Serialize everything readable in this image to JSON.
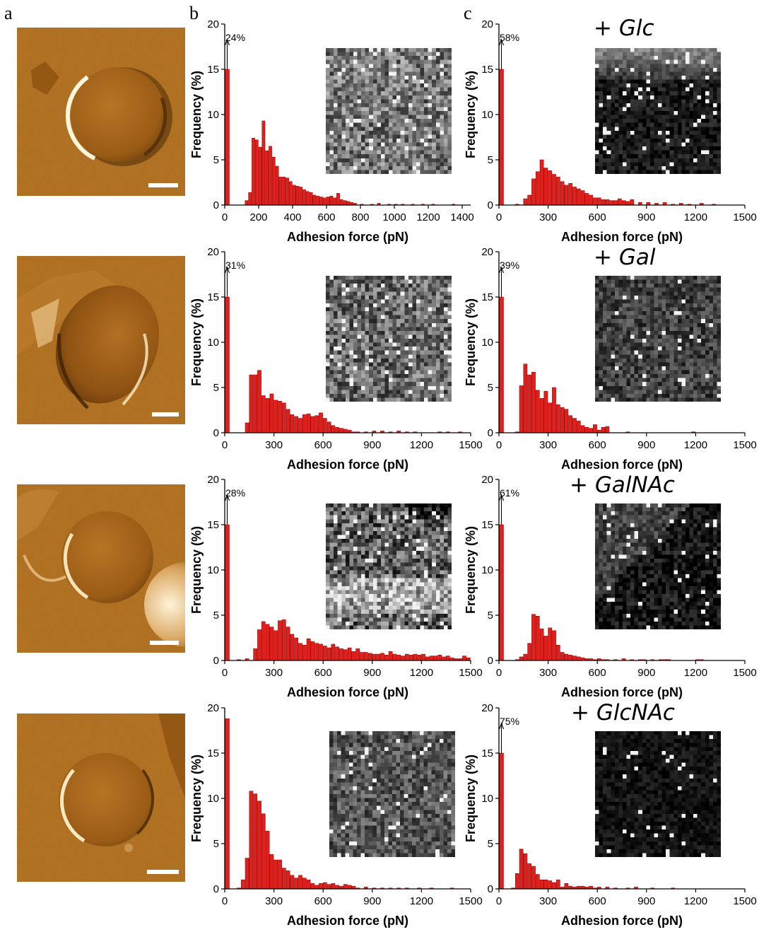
{
  "panel_labels": [
    "a",
    "b",
    "c"
  ],
  "sugars": [
    "+ Glc",
    "+ Gal",
    "+ GalNAc",
    "+ GlcNAc"
  ],
  "colors": {
    "bar_fill": "#e0201c",
    "bar_edge": "#8a0000",
    "afm_base": "#a86518"
  },
  "chart_data": [
    {
      "type": "bar",
      "panel": "b",
      "row": 1,
      "annotation": "24%",
      "xlabel": "Adhesion force (pN)",
      "ylabel": "Frequency (%)",
      "xlim": [
        0,
        1450
      ],
      "ylim": [
        0,
        20
      ],
      "xticks": [
        0,
        200,
        400,
        600,
        800,
        1000,
        1200,
        1400
      ],
      "yticks": [
        0,
        5,
        10,
        15,
        20
      ],
      "bin_width": 20,
      "x": [
        0,
        120,
        140,
        160,
        180,
        200,
        220,
        240,
        260,
        280,
        300,
        320,
        340,
        360,
        380,
        400,
        420,
        440,
        460,
        480,
        500,
        520,
        540,
        560,
        580,
        600,
        620,
        640,
        660,
        680,
        700,
        720,
        740,
        760,
        800,
        860,
        900,
        960,
        1000,
        1040,
        1100,
        1160,
        1220,
        1340
      ],
      "values": [
        15,
        0.5,
        1.4,
        7.4,
        7.2,
        6.4,
        9.3,
        6.0,
        6.5,
        5.3,
        4.3,
        3.1,
        3.1,
        3.0,
        2.6,
        2.2,
        2.1,
        2.0,
        1.7,
        1.5,
        1.4,
        1.1,
        1.0,
        0.9,
        0.8,
        0.9,
        1.0,
        0.8,
        1.3,
        0.6,
        0.5,
        0.4,
        0.3,
        0.2,
        0.1,
        0.1,
        0.2,
        0.1,
        0.1,
        0.1,
        0.1,
        0.1,
        0.1,
        0.1
      ]
    },
    {
      "type": "bar",
      "panel": "c",
      "row": 1,
      "annotation": "58%",
      "xlabel": "Adhesion force (pN)",
      "ylabel": "Frequency (%)",
      "xlim": [
        0,
        1500
      ],
      "ylim": [
        0,
        20
      ],
      "xticks": [
        0,
        300,
        600,
        900,
        1200,
        1500
      ],
      "yticks": [
        0,
        5,
        10,
        15,
        20
      ],
      "bin_width": 25,
      "x": [
        0,
        100,
        150,
        175,
        200,
        225,
        250,
        275,
        300,
        325,
        350,
        375,
        400,
        425,
        450,
        475,
        500,
        525,
        550,
        575,
        600,
        625,
        650,
        675,
        700,
        725,
        750,
        775,
        800,
        850,
        900,
        950,
        1000,
        1050,
        1100,
        1150,
        1225,
        1300
      ],
      "values": [
        15,
        0.1,
        0.7,
        1.1,
        2.9,
        3.7,
        5.0,
        4.1,
        3.8,
        3.4,
        3.1,
        2.6,
        2.2,
        2.4,
        2.0,
        1.8,
        1.6,
        1.3,
        1.1,
        0.8,
        0.8,
        0.6,
        0.6,
        0.5,
        0.5,
        0.7,
        0.5,
        0.4,
        0.6,
        0.3,
        0.3,
        0.2,
        0.3,
        0.1,
        0.2,
        0.1,
        0.2,
        0.1
      ]
    },
    {
      "type": "bar",
      "panel": "b",
      "row": 2,
      "annotation": "31%",
      "xlabel": "Adhesion force (pN)",
      "ylabel": "Frequency (%)",
      "xlim": [
        0,
        1500
      ],
      "ylim": [
        0,
        20
      ],
      "xticks": [
        0,
        300,
        600,
        900,
        1200,
        1500
      ],
      "yticks": [
        0,
        5,
        10,
        15,
        20
      ],
      "bin_width": 25,
      "x": [
        0,
        125,
        150,
        175,
        200,
        225,
        250,
        275,
        300,
        325,
        350,
        375,
        400,
        425,
        450,
        475,
        500,
        525,
        550,
        575,
        600,
        625,
        650,
        675,
        700,
        725,
        750,
        775,
        800,
        850,
        900,
        950,
        1000,
        1050,
        1100,
        1150,
        1300,
        1350,
        1425
      ],
      "values": [
        15,
        1.1,
        6.4,
        6.4,
        6.9,
        4.1,
        3.8,
        4.3,
        3.6,
        3.5,
        3.3,
        2.6,
        2.0,
        1.8,
        1.6,
        2.0,
        2.1,
        1.8,
        1.9,
        2.2,
        1.6,
        1.2,
        0.8,
        0.6,
        0.5,
        0.4,
        0.3,
        0.1,
        0.1,
        0.1,
        0.2,
        0.2,
        0.1,
        0.2,
        0.1,
        0.1,
        0.1,
        0.1,
        0.1
      ]
    },
    {
      "type": "bar",
      "panel": "c",
      "row": 2,
      "annotation": "39%",
      "xlabel": "Adhesion force (pN)",
      "ylabel": "Frequency (%)",
      "xlim": [
        0,
        1500
      ],
      "ylim": [
        0,
        20
      ],
      "xticks": [
        0,
        300,
        600,
        900,
        1200,
        1500
      ],
      "yticks": [
        0,
        5,
        10,
        15,
        20
      ],
      "bin_width": 25,
      "x": [
        0,
        100,
        125,
        150,
        175,
        200,
        225,
        250,
        275,
        300,
        325,
        350,
        375,
        400,
        425,
        450,
        475,
        500,
        525,
        550,
        575,
        600,
        625,
        650,
        775,
        1175
      ],
      "values": [
        15,
        0.1,
        5.2,
        7.6,
        6.4,
        6.7,
        4.7,
        3.8,
        4.6,
        3.3,
        5.0,
        3.1,
        2.8,
        2.6,
        1.9,
        1.6,
        1.3,
        0.8,
        0.6,
        0.5,
        0.9,
        0.3,
        0.6,
        0.7,
        0.1,
        0.1
      ]
    },
    {
      "type": "bar",
      "panel": "b",
      "row": 3,
      "annotation": "28%",
      "xlabel": "Adhesion force (pN)",
      "ylabel": "Frequency (%)",
      "xlim": [
        0,
        1500
      ],
      "ylim": [
        0,
        20
      ],
      "xticks": [
        0,
        300,
        600,
        900,
        1200,
        1500
      ],
      "yticks": [
        0,
        5,
        10,
        15,
        20
      ],
      "bin_width": 25,
      "x": [
        0,
        75,
        125,
        175,
        200,
        225,
        250,
        275,
        300,
        325,
        350,
        375,
        400,
        425,
        450,
        475,
        500,
        525,
        550,
        575,
        600,
        625,
        650,
        675,
        700,
        725,
        750,
        775,
        800,
        825,
        850,
        875,
        900,
        925,
        950,
        975,
        1000,
        1025,
        1050,
        1075,
        1100,
        1125,
        1150,
        1175,
        1200,
        1225,
        1250,
        1275,
        1300,
        1325,
        1350,
        1375,
        1400,
        1425,
        1450,
        1475
      ],
      "values": [
        15,
        0.1,
        0.2,
        1.3,
        3.4,
        4.3,
        4.0,
        3.7,
        3.3,
        4.4,
        4.5,
        3.7,
        2.9,
        2.5,
        1.9,
        1.7,
        2.4,
        2.1,
        1.9,
        1.8,
        1.6,
        1.4,
        1.8,
        1.5,
        1.3,
        1.2,
        1.4,
        1.0,
        1.3,
        0.9,
        0.9,
        0.8,
        0.7,
        0.7,
        0.8,
        0.6,
        1.0,
        0.7,
        0.6,
        0.5,
        0.7,
        0.6,
        0.7,
        0.6,
        0.7,
        0.4,
        0.5,
        0.5,
        0.6,
        0.4,
        0.5,
        0.3,
        0.2,
        0.2,
        0.5,
        0.3
      ]
    },
    {
      "type": "bar",
      "panel": "c",
      "row": 3,
      "annotation": "61%",
      "xlabel": "Adhesion force (pN)",
      "ylabel": "Frequency (%)",
      "xlim": [
        0,
        1500
      ],
      "ylim": [
        0,
        20
      ],
      "xticks": [
        0,
        300,
        600,
        900,
        1200,
        1500
      ],
      "yticks": [
        0,
        5,
        10,
        15,
        20
      ],
      "bin_width": 25,
      "x": [
        0,
        100,
        125,
        150,
        175,
        200,
        225,
        250,
        275,
        300,
        325,
        350,
        375,
        400,
        425,
        450,
        475,
        500,
        525,
        550,
        575,
        600,
        625,
        650,
        700,
        750,
        800,
        850,
        875,
        925,
        975,
        1000,
        1025,
        1200,
        1225
      ],
      "values": [
        15,
        0.1,
        0.4,
        0.7,
        1.9,
        5.1,
        4.9,
        3.5,
        2.7,
        3.6,
        3.3,
        1.7,
        0.9,
        0.7,
        0.6,
        0.5,
        0.4,
        0.3,
        0.2,
        0.2,
        0.1,
        0.2,
        0.1,
        0.1,
        0.1,
        0.2,
        0.1,
        0.1,
        0.1,
        0.1,
        0.1,
        0.1,
        0.1,
        0.1,
        0.1
      ]
    },
    {
      "type": "bar",
      "panel": "b",
      "row": 4,
      "xlabel": "Adhesion force (pN)",
      "ylabel": "Frequency (%)",
      "xlim": [
        0,
        1500
      ],
      "ylim": [
        0,
        20
      ],
      "xticks": [
        0,
        300,
        600,
        900,
        1200,
        1500
      ],
      "yticks": [
        0,
        5,
        10,
        15,
        20
      ],
      "bin_width": 25,
      "x": [
        0,
        75,
        100,
        125,
        150,
        175,
        200,
        225,
        250,
        275,
        300,
        325,
        350,
        375,
        400,
        425,
        450,
        475,
        500,
        525,
        550,
        575,
        600,
        625,
        650,
        675,
        700,
        725,
        750,
        775,
        800,
        850,
        900,
        950,
        1000,
        1050,
        1100,
        1175,
        1250,
        1375
      ],
      "values": [
        18.8,
        0.1,
        1.0,
        3.4,
        10.8,
        10.5,
        9.7,
        8.3,
        6.4,
        3.8,
        3.2,
        3.2,
        2.3,
        2.0,
        1.5,
        1.2,
        1.5,
        1.2,
        1.0,
        0.6,
        0.4,
        0.6,
        0.7,
        0.5,
        0.6,
        0.4,
        0.3,
        0.5,
        0.4,
        0.3,
        0.1,
        0.2,
        0.1,
        0.1,
        0.1,
        0.1,
        0.1,
        0.1,
        0.1,
        0.1
      ]
    },
    {
      "type": "bar",
      "panel": "c",
      "row": 4,
      "annotation": "75%",
      "xlabel": "Adhesion force (pN)",
      "ylabel": "Frequency (%)",
      "xlim": [
        0,
        1500
      ],
      "ylim": [
        0,
        20
      ],
      "xticks": [
        0,
        300,
        600,
        900,
        1200,
        1500
      ],
      "yticks": [
        0,
        5,
        10,
        15,
        20
      ],
      "bin_width": 25,
      "x": [
        0,
        75,
        100,
        125,
        150,
        175,
        200,
        225,
        250,
        275,
        300,
        325,
        350,
        375,
        400,
        425,
        450,
        475,
        500,
        525,
        550,
        575,
        600,
        650,
        700,
        775,
        825,
        925,
        1050
      ],
      "values": [
        15,
        0.1,
        1.7,
        4.4,
        3.9,
        2.8,
        2.5,
        1.6,
        1.0,
        1.0,
        0.9,
        0.7,
        1.0,
        0.2,
        0.6,
        0.3,
        0.2,
        0.3,
        0.3,
        0.2,
        0.3,
        0.1,
        0.2,
        0.2,
        0.1,
        0.1,
        0.2,
        0.1,
        0.1
      ]
    }
  ]
}
